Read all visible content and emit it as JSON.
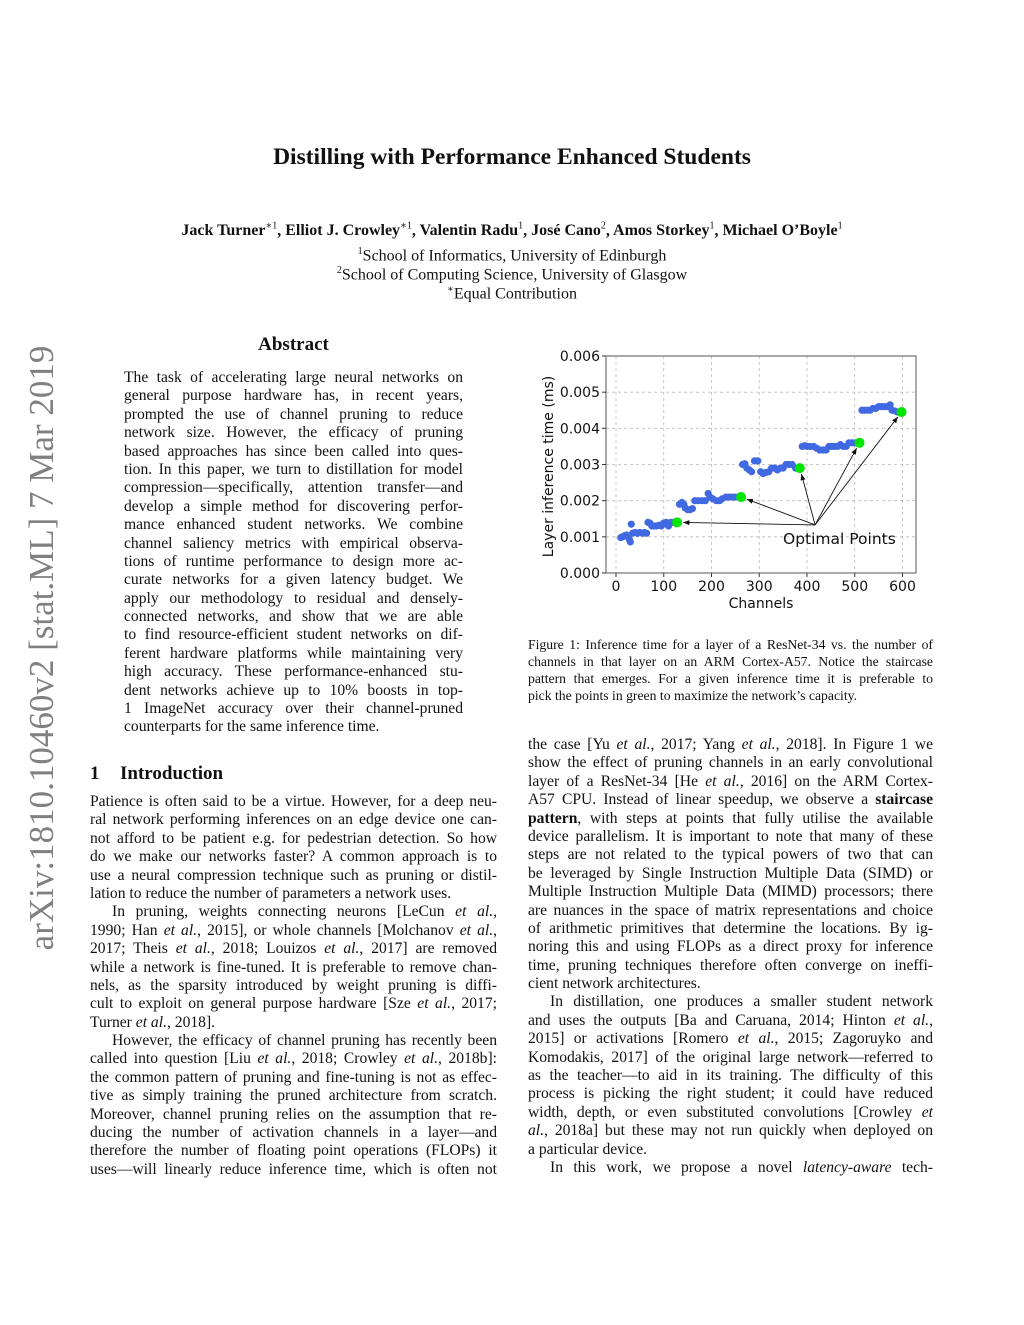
{
  "sidebar_stamp": "arXiv:1810.10460v2  [stat.ML]  7 Mar 2019",
  "title": "Distilling with Performance Enhanced Students",
  "authors": [
    {
      "name": "Jack Turner",
      "sup": "∗1"
    },
    {
      "name": "Elliot J. Crowley",
      "sup": "∗1"
    },
    {
      "name": "Valentin Radu",
      "sup": "1"
    },
    {
      "name": "José Cano",
      "sup": "2"
    },
    {
      "name": "Amos Storkey",
      "sup": "1"
    },
    {
      "name": "Michael O’Boyle",
      "sup": "1"
    }
  ],
  "affiliations": [
    {
      "sup": "1",
      "text": "School of Informatics, University of Edinburgh"
    },
    {
      "sup": "2",
      "text": "School of Computing Science, University of Glasgow"
    },
    {
      "sup": "∗",
      "text": "Equal Contribution"
    }
  ],
  "abstract": {
    "heading": "Abstract",
    "paragraphs": [
      {
        "indent": false,
        "lines": [
          "The task of accelerating large neural networks on",
          "general purpose hardware has, in recent years,",
          "prompted the use of channel pruning to reduce",
          "network size.  However, the efficacy of pruning",
          "based approaches has since been called into ques-",
          "tion. In this paper, we turn to distillation for model",
          "compression—specifically, attention transfer—and",
          "develop a simple method for discovering perfor-",
          "mance enhanced student networks.  We combine",
          "channel saliency metrics with empirical observa-",
          "tions of runtime performance to design more ac-",
          "curate networks for a given latency budget.  We",
          "apply our methodology to residual and densely-",
          "connected networks, and show that we are able",
          "to find resource-efficient student networks on dif-",
          "ferent hardware platforms while maintaining very",
          "high accuracy.  These performance-enhanced stu-",
          "dent networks achieve up to 10% boosts in top-",
          "1 ImageNet accuracy over their channel-pruned",
          "counterparts for the same inference time."
        ],
        "ends": true
      }
    ]
  },
  "introduction": {
    "number": "1",
    "heading": "Introduction",
    "paragraphs": [
      {
        "indent": false,
        "ends": true,
        "lines": [
          "Patience is often said to be a virtue. However, for a deep neu-",
          "ral network performing inferences on an edge device one can-",
          "not afford to be patient e.g. for pedestrian detection.  So how",
          "do we make our networks faster?  A common approach is to",
          "use a neural compression technique such as pruning or distil-",
          "lation to reduce the number of parameters a network uses."
        ]
      },
      {
        "indent": true,
        "ends": true,
        "lines": [
          "In pruning, weights connecting neurons [LeCun et al.,",
          "1990; Han et al., 2015], or whole channels [Molchanov et al.,",
          "2017; Theis et al., 2018; Louizos et al., 2017] are removed",
          "while a network is fine-tuned. It is preferable to remove chan-",
          "nels, as the sparsity introduced by weight pruning is diffi-",
          "cult to exploit on general purpose hardware [Sze et al., 2017;",
          "Turner et al., 2018]."
        ]
      },
      {
        "indent": true,
        "ends": false,
        "lines": [
          "However, the efficacy of channel pruning has recently been",
          "called into question [Liu et al., 2018; Crowley et al., 2018b]:",
          "the common pattern of pruning and fine-tuning is not as effec-",
          "tive as simply training the pruned architecture from scratch.",
          "Moreover, channel pruning relies on the assumption that re-",
          "ducing the number of activation channels in a layer—and",
          "therefore the number of floating point operations (FLOPs) it",
          "uses—will linearly reduce inference time, which is often not"
        ]
      }
    ]
  },
  "right_column": {
    "paragraphs": [
      {
        "indent": false,
        "ends": true,
        "lines": [
          "the case [Yu et al., 2017; Yang et al., 2018].  In Figure 1 we",
          "show the effect of pruning channels in an early convolutional",
          "layer of a ResNet-34 [He et al., 2016] on the ARM Cortex-",
          "A57 CPU. Instead of linear speedup, we observe a staircase",
          "pattern, with steps at points that fully utilise the available",
          "device parallelism.  It is important to note that many of these",
          "steps are not related to the typical powers of two that can",
          "be leveraged by Single Instruction Multiple Data (SIMD) or",
          "Multiple Instruction Multiple Data (MIMD) processors; there",
          "are nuances in the space of matrix representations and choice",
          "of arithmetic primitives that determine the locations.  By ig-",
          "noring this and using FLOPs as a direct proxy for inference",
          "time, pruning techniques therefore often converge on ineffi-",
          "cient network architectures."
        ]
      },
      {
        "indent": true,
        "ends": true,
        "lines": [
          "In distillation, one produces a smaller student network",
          "and uses the outputs [Ba and Caruana, 2014; Hinton et al.,",
          "2015] or activations [Romero et al., 2015; Zagoruyko and",
          "Komodakis, 2017] of the original large network—referred to",
          "as the teacher—to aid in its training.  The difficulty of this",
          "process is picking the right student; it could have reduced",
          "width, depth, or even substituted convolutions [Crowley et",
          "al., 2018a] but these may not run quickly when deployed on",
          "a particular device."
        ]
      },
      {
        "indent": true,
        "ends": false,
        "lines": [
          "In this work, we propose a novel latency-aware tech-"
        ]
      }
    ]
  },
  "figure": {
    "caption_lines": [
      "Figure 1: Inference time for a layer of a ResNet-34 vs. the number of",
      "channels in that layer on an ARM Cortex-A57. Notice the staircase",
      "pattern that emerges.  For a given inference time it is preferable to",
      "pick the points in green to maximize the network’s capacity."
    ]
  },
  "chart_data": {
    "type": "scatter",
    "xlabel": "Channels",
    "ylabel": "Layer inference time (ms)",
    "xlim": [
      -20,
      620
    ],
    "ylim": [
      0,
      0.006
    ],
    "xticks": [
      "0",
      "100",
      "200",
      "300",
      "400",
      "500",
      "600"
    ],
    "yticks": [
      "0.000",
      "0.001",
      "0.002",
      "0.003",
      "0.004",
      "0.005",
      "0.006"
    ],
    "grid": true,
    "colors": {
      "measured": "#4169e1",
      "optimal": "#00e600"
    },
    "annotation": {
      "text": "Optimal Points",
      "from": [
        417,
        0.00133
      ]
    },
    "measured": [
      [
        10,
        0.00098
      ],
      [
        14,
        0.001
      ],
      [
        18,
        0.00103
      ],
      [
        22,
        0.00105
      ],
      [
        25,
        0.001
      ],
      [
        28,
        0.00092
      ],
      [
        30,
        0.00086
      ],
      [
        32,
        0.00135
      ],
      [
        35,
        0.0011
      ],
      [
        40,
        0.00112
      ],
      [
        45,
        0.0011
      ],
      [
        50,
        0.00112
      ],
      [
        55,
        0.0011
      ],
      [
        60,
        0.00112
      ],
      [
        64,
        0.0011
      ],
      [
        67,
        0.0014
      ],
      [
        71,
        0.00138
      ],
      [
        75,
        0.0013
      ],
      [
        80,
        0.0013
      ],
      [
        85,
        0.0013
      ],
      [
        90,
        0.00132
      ],
      [
        95,
        0.0013
      ],
      [
        100,
        0.00138
      ],
      [
        105,
        0.0014
      ],
      [
        110,
        0.0013
      ],
      [
        115,
        0.0014
      ],
      [
        120,
        0.0014
      ],
      [
        124,
        0.0014
      ],
      [
        133,
        0.0019
      ],
      [
        138,
        0.00195
      ],
      [
        142,
        0.0019
      ],
      [
        145,
        0.0018
      ],
      [
        150,
        0.00175
      ],
      [
        155,
        0.00175
      ],
      [
        160,
        0.00178
      ],
      [
        165,
        0.002
      ],
      [
        172,
        0.002
      ],
      [
        180,
        0.002
      ],
      [
        187,
        0.002
      ],
      [
        193,
        0.0022
      ],
      [
        197,
        0.0021
      ],
      [
        203,
        0.00205
      ],
      [
        210,
        0.002
      ],
      [
        217,
        0.002
      ],
      [
        222,
        0.00205
      ],
      [
        230,
        0.0021
      ],
      [
        237,
        0.0021
      ],
      [
        244,
        0.0021
      ],
      [
        250,
        0.0021
      ],
      [
        256,
        0.0021
      ],
      [
        265,
        0.003
      ],
      [
        270,
        0.00302
      ],
      [
        274,
        0.0029
      ],
      [
        279,
        0.00285
      ],
      [
        284,
        0.0028
      ],
      [
        290,
        0.0031
      ],
      [
        297,
        0.0031
      ],
      [
        303,
        0.0028
      ],
      [
        308,
        0.00275
      ],
      [
        314,
        0.00278
      ],
      [
        320,
        0.0028
      ],
      [
        326,
        0.0029
      ],
      [
        332,
        0.0029
      ],
      [
        338,
        0.00285
      ],
      [
        344,
        0.0029
      ],
      [
        350,
        0.0029
      ],
      [
        356,
        0.003
      ],
      [
        362,
        0.003
      ],
      [
        369,
        0.003
      ],
      [
        376,
        0.0029
      ],
      [
        390,
        0.0035
      ],
      [
        395,
        0.00352
      ],
      [
        400,
        0.0035
      ],
      [
        407,
        0.0035
      ],
      [
        414,
        0.0035
      ],
      [
        420,
        0.00345
      ],
      [
        427,
        0.0034
      ],
      [
        434,
        0.0034
      ],
      [
        440,
        0.0034
      ],
      [
        446,
        0.0035
      ],
      [
        452,
        0.0035
      ],
      [
        458,
        0.0035
      ],
      [
        464,
        0.0035
      ],
      [
        470,
        0.00355
      ],
      [
        476,
        0.0035
      ],
      [
        482,
        0.0035
      ],
      [
        488,
        0.0036
      ],
      [
        494,
        0.0036
      ],
      [
        500,
        0.0036
      ],
      [
        505,
        0.0036
      ],
      [
        515,
        0.0045
      ],
      [
        520,
        0.0045
      ],
      [
        526,
        0.0045
      ],
      [
        532,
        0.0045
      ],
      [
        538,
        0.00455
      ],
      [
        544,
        0.00455
      ],
      [
        550,
        0.0046
      ],
      [
        556,
        0.0046
      ],
      [
        562,
        0.0046
      ],
      [
        568,
        0.0046
      ],
      [
        574,
        0.00465
      ],
      [
        578,
        0.0045
      ],
      [
        584,
        0.00448
      ],
      [
        590,
        0.00445
      ]
    ],
    "optimal": [
      [
        128,
        0.0014
      ],
      [
        262,
        0.0021
      ],
      [
        385,
        0.0029
      ],
      [
        510,
        0.0036
      ],
      [
        598,
        0.00445
      ]
    ]
  }
}
